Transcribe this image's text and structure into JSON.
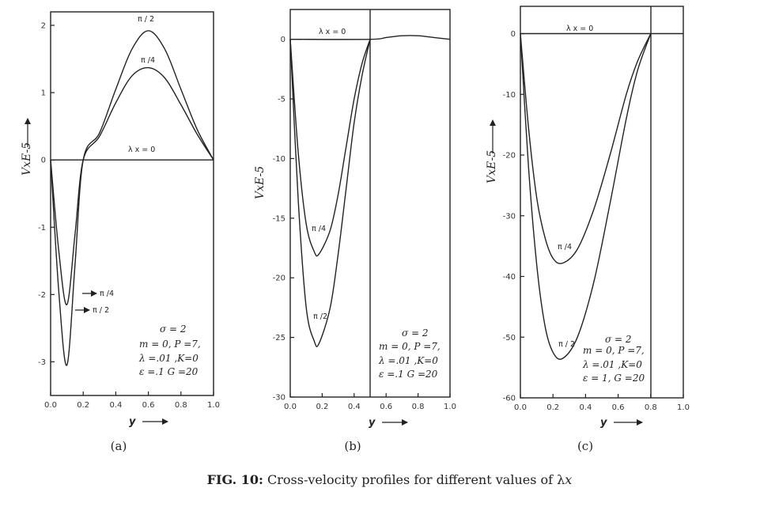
{
  "caption": {
    "figure_number": "FIG. 10:",
    "text": "Cross-velocity profiles for different values of λx",
    "text_main": "Cross-velocity profiles for different values of λ",
    "text_symbol": "x"
  },
  "chart_data": [
    {
      "type": "line",
      "panel": "(a)",
      "xlabel": "y",
      "ylabel": "VxE-5",
      "xlim": [
        0.0,
        1.0
      ],
      "ylim": [
        -3.5,
        2.2
      ],
      "xticks": [
        0.0,
        0.2,
        0.4,
        0.6,
        0.8,
        1.0
      ],
      "xtick_labels": [
        "0.0",
        "0.2",
        "0.4",
        "0.6",
        "0.8",
        "1.0"
      ],
      "yticks": [
        2,
        1,
        0,
        -1,
        -2,
        -3
      ],
      "ytick_labels": [
        "2",
        "1",
        "0",
        "-1",
        "-2",
        "-3"
      ],
      "grid": false,
      "series": [
        {
          "name": "π / 2",
          "x": [
            0.0,
            0.05,
            0.1,
            0.15,
            0.2,
            0.3,
            0.4,
            0.5,
            0.6,
            0.7,
            0.8,
            0.9,
            1.0
          ],
          "y": [
            0.0,
            -1.95,
            -3.05,
            -1.55,
            0.0,
            0.4,
            1.05,
            1.65,
            1.92,
            1.65,
            1.05,
            0.45,
            0.0
          ]
        },
        {
          "name": "π /4",
          "x": [
            0.0,
            0.05,
            0.1,
            0.15,
            0.2,
            0.3,
            0.4,
            0.5,
            0.6,
            0.7,
            0.8,
            0.9,
            1.0
          ],
          "y": [
            0.0,
            -1.35,
            -2.15,
            -1.1,
            0.0,
            0.35,
            0.85,
            1.25,
            1.37,
            1.22,
            0.82,
            0.38,
            0.0
          ]
        },
        {
          "name": "λ x = 0",
          "x": [
            0.0,
            1.0
          ],
          "y": [
            0.0,
            0.0
          ]
        }
      ],
      "annotations": [
        "π / 2",
        "π /4",
        "λ x = 0",
        "π /4",
        "π / 2"
      ],
      "parameters": [
        "σ = 2",
        "m = 0,  P =7,",
        "λ =.01 ,K=0",
        "ε =.1    G =20"
      ]
    },
    {
      "type": "line",
      "panel": "(b)",
      "xlabel": "y",
      "ylabel": "VxE-5",
      "xlim": [
        0.0,
        1.0
      ],
      "ylim": [
        -30,
        2.5
      ],
      "xticks": [
        0.0,
        0.2,
        0.4,
        0.6,
        0.8,
        1.0
      ],
      "xtick_labels": [
        "0.0",
        "0.2",
        "0.4",
        "0.6",
        "0.8",
        "1.0"
      ],
      "yticks": [
        0,
        -5,
        -10,
        -15,
        -20,
        -25,
        -30
      ],
      "ytick_labels": [
        "0",
        "-5",
        "-10",
        "-15",
        "-20",
        "-25",
        "-30"
      ],
      "grid": false,
      "vertical_line_x": 0.5,
      "series": [
        {
          "name": "π /2",
          "x": [
            0.0,
            0.05,
            0.1,
            0.15,
            0.18,
            0.25,
            0.3,
            0.35,
            0.4,
            0.45,
            0.5
          ],
          "y": [
            0.0,
            -13.5,
            -22.5,
            -25.3,
            -25.5,
            -22.5,
            -18.0,
            -12.5,
            -7.0,
            -3.0,
            0.0
          ]
        },
        {
          "name": "π /4",
          "x": [
            0.0,
            0.05,
            0.1,
            0.15,
            0.18,
            0.25,
            0.3,
            0.35,
            0.4,
            0.45,
            0.5
          ],
          "y": [
            0.0,
            -9.5,
            -15.5,
            -17.8,
            -18.0,
            -16.0,
            -13.0,
            -9.0,
            -5.0,
            -2.0,
            0.0
          ]
        },
        {
          "name": "λ x = 0",
          "x": [
            0.0,
            0.5,
            0.6,
            0.7,
            0.8,
            0.9,
            1.0
          ],
          "y": [
            0.0,
            0.0,
            0.15,
            0.3,
            0.3,
            0.15,
            0.0
          ]
        }
      ],
      "annotations": [
        "λ x = 0",
        "π /4",
        "π /2"
      ],
      "parameters": [
        "σ = 2",
        "m = 0,  P =7,",
        "λ =.01 ,K=0",
        "ε =.1    G =20"
      ]
    },
    {
      "type": "line",
      "panel": "(c)",
      "xlabel": "y",
      "ylabel": "VxE-5",
      "xlim": [
        0.0,
        1.0
      ],
      "ylim": [
        -60,
        4.5
      ],
      "xticks": [
        0.0,
        0.2,
        0.4,
        0.6,
        0.8,
        1.0
      ],
      "xtick_labels": [
        "0.0",
        "0.2",
        "0.4",
        "0.6",
        "0.8",
        "1.0"
      ],
      "yticks": [
        0,
        -10,
        -20,
        -30,
        -40,
        -50,
        -60
      ],
      "ytick_labels": [
        "0",
        "-10",
        "-20",
        "-30",
        "-40",
        "-50",
        "-60"
      ],
      "grid": false,
      "vertical_line_x": 0.8,
      "series": [
        {
          "name": "π / 2",
          "x": [
            0.0,
            0.05,
            0.1,
            0.15,
            0.2,
            0.26,
            0.35,
            0.45,
            0.55,
            0.65,
            0.72,
            0.8
          ],
          "y": [
            0.0,
            -22.0,
            -38.0,
            -48.0,
            -52.5,
            -53.5,
            -50.0,
            -41.0,
            -28.0,
            -14.0,
            -6.0,
            0.0
          ]
        },
        {
          "name": "π /4",
          "x": [
            0.0,
            0.05,
            0.1,
            0.15,
            0.2,
            0.26,
            0.35,
            0.45,
            0.55,
            0.65,
            0.72,
            0.8
          ],
          "y": [
            0.0,
            -15.5,
            -27.0,
            -33.5,
            -37.0,
            -37.8,
            -35.5,
            -29.0,
            -20.0,
            -10.0,
            -4.5,
            0.0
          ]
        },
        {
          "name": "λ x = 0",
          "x": [
            0.0,
            1.0
          ],
          "y": [
            0.0,
            0.0
          ]
        }
      ],
      "annotations": [
        "λ x = 0",
        "π /4",
        "π / 2"
      ],
      "parameters": [
        "σ = 2",
        "m = 0,  P =7,",
        "λ =.01 ,K=0",
        "ε = 1,  G =20"
      ]
    }
  ]
}
